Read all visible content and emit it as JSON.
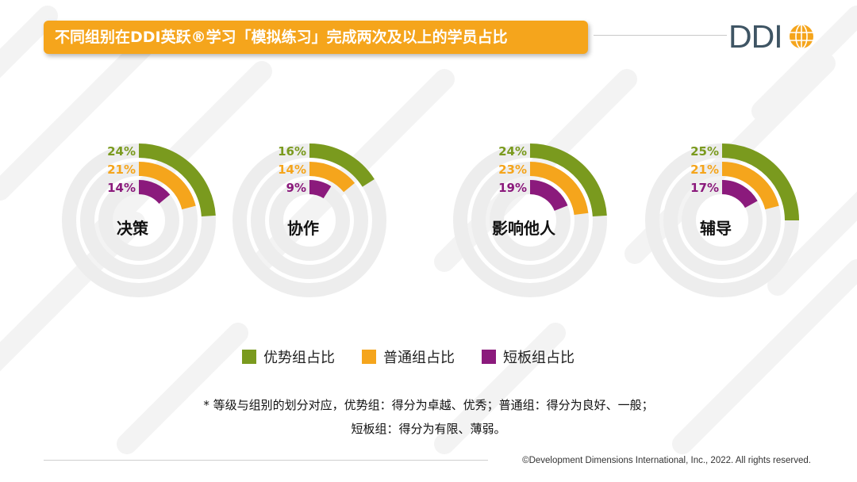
{
  "title": "不同组别在DDI英跃®学习「模拟练习」完成两次及以上的学员占比",
  "logo": {
    "text": "DDI"
  },
  "colors": {
    "advantage": "#7a9a1e",
    "normal": "#f5a51c",
    "weak": "#8b1a7c",
    "track": "#ededed",
    "banner": "#f5a51c"
  },
  "chart_data": {
    "type": "radial-bar",
    "categories": [
      "决策",
      "协作",
      "影响他人",
      "辅导"
    ],
    "series": [
      {
        "name": "优势组占比",
        "values": [
          24,
          16,
          24,
          25
        ],
        "labels": [
          "24%",
          "16%",
          "24%",
          "25%"
        ]
      },
      {
        "name": "普通组占比",
        "values": [
          21,
          14,
          23,
          21
        ],
        "labels": [
          "21%",
          "14%",
          "23%",
          "21%"
        ]
      },
      {
        "name": "短板组占比",
        "values": [
          14,
          9,
          19,
          17
        ],
        "labels": [
          "14%",
          "9%",
          "19%",
          "17%"
        ]
      }
    ],
    "value_unit": "%",
    "full_circle_value": 100
  },
  "legend": [
    {
      "label": "优势组占比",
      "color": "#7a9a1e"
    },
    {
      "label": "普通组占比",
      "color": "#f5a51c"
    },
    {
      "label": "短板组占比",
      "color": "#8b1a7c"
    }
  ],
  "footnote": {
    "line1": "* 等级与组别的划分对应，优势组：得分为卓越、优秀；普通组：得分为良好、一般；",
    "line2": "短板组：得分为有限、薄弱。"
  },
  "copyright": "©Development Dimensions International, Inc., 2022. All rights reserved."
}
